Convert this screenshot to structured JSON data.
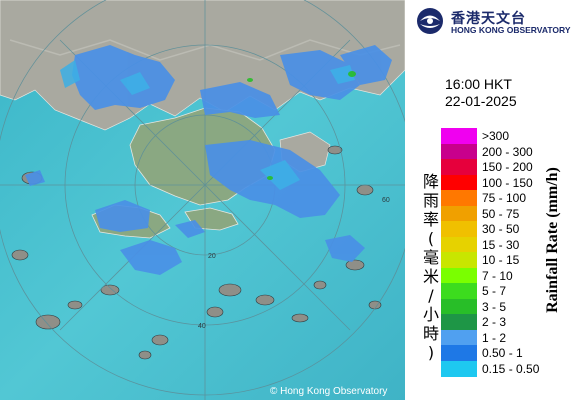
{
  "logo": {
    "name_zh": "香港天文台",
    "name_en": "HONG KONG OBSERVATORY",
    "icon": "hko-emblem-icon"
  },
  "time": "16:00 HKT",
  "date": "22-01-2025",
  "legend": {
    "label_zh": "降雨率(毫米/小時)",
    "label_en": "Rainfall Rate (mm/h)",
    "items": [
      {
        "label": ">300",
        "color": "#f000f0"
      },
      {
        "label": "200 - 300",
        "color": "#c8008c"
      },
      {
        "label": "150 - 200",
        "color": "#e6003c"
      },
      {
        "label": "100 - 150",
        "color": "#ff0000"
      },
      {
        "label": "75 - 100",
        "color": "#ff7800"
      },
      {
        "label": "50 - 75",
        "color": "#f0a000"
      },
      {
        "label": "30 - 50",
        "color": "#f0c000"
      },
      {
        "label": "15 - 30",
        "color": "#e6d200"
      },
      {
        "label": "10 - 15",
        "color": "#c8e600"
      },
      {
        "label": "7 - 10",
        "color": "#7aff00"
      },
      {
        "label": "5 - 7",
        "color": "#3cdc1e"
      },
      {
        "label": "3 - 5",
        "color": "#28be28"
      },
      {
        "label": "2 - 3",
        "color": "#1e9646"
      },
      {
        "label": "1 - 2",
        "color": "#50a0f0"
      },
      {
        "label": "0.50 - 1",
        "color": "#1e78e6"
      },
      {
        "label": "0.15 - 0.50",
        "color": "#1ec8f0"
      }
    ]
  },
  "range_rings": [
    "20",
    "40",
    "60"
  ],
  "copyright": "© Hong Kong Observatory"
}
